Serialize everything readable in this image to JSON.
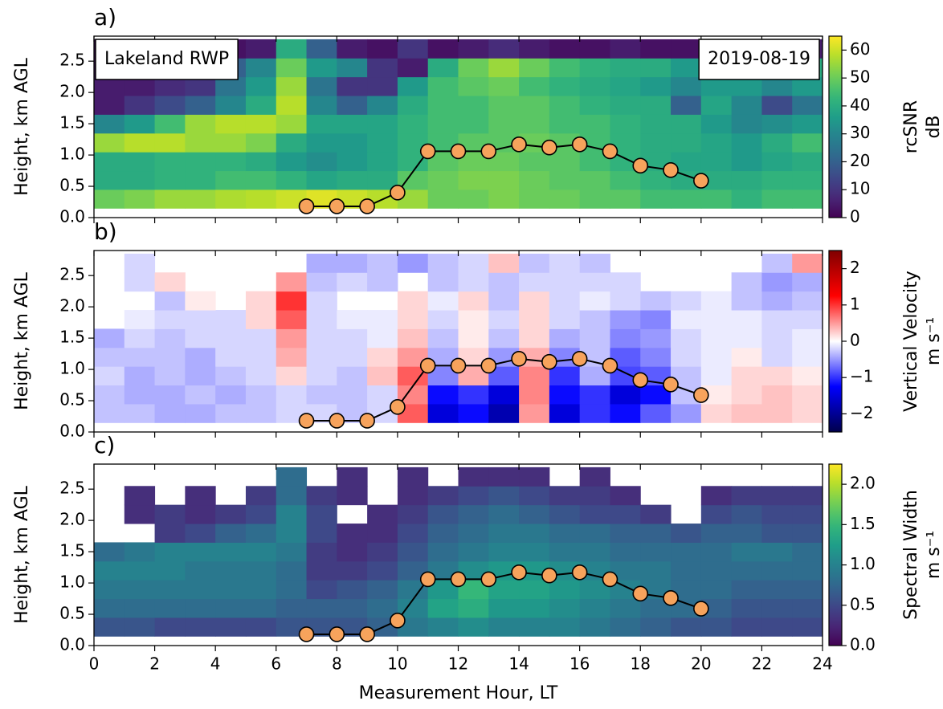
{
  "chart_data": [
    {
      "type": "heatmap",
      "panel_label": "a)",
      "ylabel": "Height, km AGL",
      "colorbar_label": [
        "rcSNR",
        "dB"
      ],
      "colormap": "viridis",
      "zlim": [
        0,
        65
      ],
      "zticks": [
        0,
        10,
        20,
        30,
        40,
        50,
        60
      ],
      "annotations": [
        "Lakeland RWP",
        "2019-08-19"
      ],
      "xlim": [
        0,
        24
      ],
      "ylim": [
        0,
        2.9
      ],
      "yticks": [
        {
          "value": 0,
          "label": "0.0"
        },
        {
          "value": 0.5,
          "label": "0.5"
        },
        {
          "value": 1,
          "label": "1.0"
        },
        {
          "value": 1.5,
          "label": "1.5"
        },
        {
          "value": 2,
          "label": "2.0"
        },
        {
          "value": 2.5,
          "label": "2.5"
        }
      ],
      "xbins": [
        0,
        1,
        2,
        3,
        4,
        5,
        6,
        7,
        8,
        9,
        10,
        11,
        12,
        13,
        14,
        15,
        16,
        17,
        18,
        19,
        20,
        21,
        22,
        23,
        24
      ],
      "ybins": [
        0.15,
        0.45,
        0.75,
        1.05,
        1.35,
        1.65,
        1.95,
        2.25,
        2.55,
        2.85
      ],
      "z": [
        [
          50,
          52,
          55,
          55,
          57,
          58,
          60,
          62,
          60,
          58,
          55,
          50,
          50,
          52,
          50,
          50,
          48,
          48,
          45,
          45,
          45,
          42,
          45,
          45
        ],
        [
          40,
          40,
          42,
          42,
          45,
          45,
          42,
          38,
          40,
          40,
          48,
          50,
          52,
          52,
          50,
          48,
          48,
          45,
          42,
          40,
          40,
          40,
          42,
          42
        ],
        [
          40,
          40,
          42,
          42,
          42,
          40,
          35,
          32,
          35,
          38,
          42,
          48,
          50,
          50,
          48,
          48,
          45,
          42,
          40,
          38,
          38,
          35,
          38,
          40
        ],
        [
          55,
          58,
          58,
          55,
          55,
          52,
          40,
          35,
          35,
          38,
          42,
          45,
          48,
          48,
          50,
          48,
          45,
          42,
          40,
          40,
          38,
          35,
          40,
          45
        ],
        [
          30,
          35,
          45,
          55,
          58,
          58,
          55,
          38,
          38,
          38,
          42,
          45,
          45,
          48,
          48,
          45,
          45,
          42,
          40,
          40,
          35,
          30,
          32,
          35
        ],
        [
          5,
          10,
          15,
          20,
          30,
          40,
          58,
          30,
          20,
          30,
          40,
          45,
          45,
          48,
          48,
          45,
          42,
          40,
          40,
          20,
          38,
          30,
          15,
          25
        ],
        [
          5,
          5,
          8,
          10,
          25,
          35,
          55,
          25,
          10,
          10,
          35,
          45,
          48,
          50,
          45,
          42,
          40,
          38,
          35,
          30,
          35,
          35,
          30,
          35
        ],
        [
          3,
          3,
          5,
          10,
          20,
          30,
          50,
          35,
          30,
          10,
          5,
          40,
          50,
          55,
          50,
          45,
          42,
          40,
          40,
          35,
          35,
          30,
          35,
          40
        ],
        [
          2,
          2,
          2,
          3,
          3,
          5,
          40,
          20,
          5,
          3,
          10,
          3,
          5,
          8,
          5,
          3,
          3,
          5,
          3,
          3,
          5,
          2,
          2,
          5
        ]
      ],
      "line": {
        "x": [
          7,
          8,
          9,
          10,
          11,
          12,
          13,
          14,
          15,
          16,
          17,
          18,
          19,
          20
        ],
        "values": [
          0.18,
          0.18,
          0.18,
          0.4,
          1.06,
          1.06,
          1.06,
          1.17,
          1.12,
          1.17,
          1.06,
          0.83,
          0.76,
          0.59
        ],
        "color": "#000000",
        "marker_color": "#f7a35c"
      }
    },
    {
      "type": "heatmap",
      "panel_label": "b)",
      "ylabel": "Height, km AGL",
      "colorbar_label": [
        "Vertical Velocity",
        "m s⁻¹"
      ],
      "colormap": "seismic",
      "zlim": [
        -2.5,
        2.5
      ],
      "zticks": [
        {
          "value": -2,
          "label": "−2"
        },
        {
          "value": -1,
          "label": "−1"
        },
        0,
        1,
        2
      ],
      "xlim": [
        0,
        24
      ],
      "ylim": [
        0,
        2.9
      ],
      "yticks": [
        {
          "value": 0,
          "label": "0.0"
        },
        {
          "value": 0.5,
          "label": "0.5"
        },
        {
          "value": 1,
          "label": "1.0"
        },
        {
          "value": 1.5,
          "label": "1.5"
        },
        {
          "value": 2,
          "label": "2.0"
        },
        {
          "value": 2.5,
          "label": "2.5"
        }
      ],
      "xbins": [
        0,
        1,
        2,
        3,
        4,
        5,
        6,
        7,
        8,
        9,
        10,
        11,
        12,
        13,
        14,
        15,
        16,
        17,
        18,
        19,
        20,
        21,
        22,
        23,
        24
      ],
      "ybins": [
        0.15,
        0.45,
        0.75,
        1.05,
        1.35,
        1.65,
        1.95,
        2.25,
        2.55,
        2.85
      ],
      "z": [
        [
          -0.3,
          -0.3,
          -0.4,
          -0.4,
          -0.3,
          -0.3,
          -0.2,
          -0.2,
          -0.3,
          -0.2,
          0.8,
          -1.5,
          -1.2,
          -1.8,
          0.5,
          -1.5,
          -1.0,
          -1.2,
          -0.8,
          -0.5,
          0.2,
          0.3,
          0.3,
          0.2
        ],
        [
          -0.3,
          -0.4,
          -0.4,
          -0.3,
          -0.4,
          -0.3,
          -0.2,
          -0.3,
          -0.3,
          -0.2,
          0.6,
          -1.2,
          -1.0,
          -1.5,
          0.6,
          -1.2,
          -1.0,
          -1.5,
          -1.2,
          -0.3,
          0.1,
          0.2,
          0.3,
          0.2
        ],
        [
          -0.2,
          -0.4,
          -0.3,
          -0.4,
          -0.3,
          -0.2,
          0.2,
          -0.2,
          -0.3,
          0.3,
          0.8,
          -0.6,
          0.4,
          -0.8,
          0.6,
          -1.0,
          -0.4,
          -0.9,
          -0.8,
          -0.3,
          -0.1,
          0.2,
          0.2,
          0.1
        ],
        [
          -0.3,
          -0.3,
          -0.3,
          -0.4,
          -0.2,
          -0.2,
          0.4,
          -0.2,
          -0.2,
          0.2,
          0.5,
          -0.4,
          0.2,
          -0.5,
          0.4,
          -0.6,
          -0.3,
          -0.8,
          -0.6,
          -0.2,
          -0.1,
          0.1,
          -0.2,
          -0.1
        ],
        [
          -0.4,
          -0.2,
          -0.3,
          -0.2,
          -0.2,
          -0.2,
          0.5,
          -0.2,
          -0.2,
          -0.1,
          0.3,
          -0.3,
          0.1,
          -0.3,
          0.2,
          -0.4,
          -0.3,
          -0.6,
          -0.5,
          -0.2,
          -0.1,
          -0.1,
          -0.2,
          -0.1
        ],
        [
          null,
          -0.1,
          -0.2,
          -0.2,
          -0.2,
          0.2,
          0.8,
          -0.2,
          -0.1,
          -0.1,
          0.2,
          -0.2,
          0.1,
          -0.2,
          0.2,
          -0.2,
          -0.3,
          -0.5,
          -0.6,
          -0.1,
          -0.1,
          -0.1,
          -0.2,
          -0.2
        ],
        [
          null,
          null,
          -0.3,
          0.1,
          null,
          0.2,
          1.0,
          -0.2,
          null,
          null,
          0.2,
          -0.1,
          0.2,
          -0.3,
          0.2,
          -0.2,
          -0.1,
          -0.2,
          -0.3,
          -0.2,
          -0.1,
          -0.3,
          -0.4,
          -0.3
        ],
        [
          null,
          -0.2,
          0.2,
          null,
          null,
          null,
          0.5,
          -0.3,
          -0.2,
          -0.3,
          null,
          -0.3,
          -0.2,
          -0.3,
          -0.2,
          -0.2,
          -0.2,
          -0.2,
          null,
          null,
          null,
          -0.3,
          -0.5,
          -0.4
        ],
        [
          null,
          -0.2,
          null,
          null,
          null,
          null,
          null,
          -0.4,
          -0.4,
          -0.3,
          -0.5,
          -0.3,
          -0.2,
          0.3,
          -0.3,
          -0.2,
          -0.3,
          null,
          null,
          null,
          null,
          null,
          -0.3,
          0.5
        ]
      ],
      "line": {
        "x": [
          7,
          8,
          9,
          10,
          11,
          12,
          13,
          14,
          15,
          16,
          17,
          18,
          19,
          20
        ],
        "values": [
          0.18,
          0.18,
          0.18,
          0.4,
          1.06,
          1.06,
          1.06,
          1.17,
          1.12,
          1.17,
          1.06,
          0.83,
          0.76,
          0.59
        ],
        "color": "#000000",
        "marker_color": "#f7a35c"
      }
    },
    {
      "type": "heatmap",
      "panel_label": "c)",
      "ylabel": "Height, km AGL",
      "colorbar_label": [
        "Spectral Width",
        "m s⁻¹"
      ],
      "colormap": "viridis",
      "zlim": [
        0,
        2.25
      ],
      "zticks": [
        {
          "value": 0,
          "label": "0.0"
        },
        {
          "value": 0.5,
          "label": "0.5"
        },
        {
          "value": 1,
          "label": "1.0"
        },
        {
          "value": 1.5,
          "label": "1.5"
        },
        {
          "value": 2,
          "label": "2.0"
        }
      ],
      "xlabel": "Measurement Hour, LT",
      "xlim": [
        0,
        24
      ],
      "xticks": [
        0,
        2,
        4,
        6,
        8,
        10,
        12,
        14,
        16,
        18,
        20,
        22,
        24
      ],
      "ylim": [
        0,
        2.9
      ],
      "yticks": [
        {
          "value": 0,
          "label": "0.0"
        },
        {
          "value": 0.5,
          "label": "0.5"
        },
        {
          "value": 1,
          "label": "1.0"
        },
        {
          "value": 1.5,
          "label": "1.5"
        },
        {
          "value": 2,
          "label": "2.0"
        },
        {
          "value": 2.5,
          "label": "2.5"
        }
      ],
      "xbins": [
        0,
        1,
        2,
        3,
        4,
        5,
        6,
        7,
        8,
        9,
        10,
        11,
        12,
        13,
        14,
        15,
        16,
        17,
        18,
        19,
        20,
        21,
        22,
        23,
        24
      ],
      "ybins": [
        0.15,
        0.45,
        0.75,
        1.05,
        1.35,
        1.65,
        1.95,
        2.25,
        2.55,
        2.85
      ],
      "z": [
        [
          0.6,
          0.6,
          0.5,
          0.5,
          0.5,
          0.5,
          0.6,
          0.6,
          0.6,
          0.7,
          0.9,
          1.0,
          1.1,
          1.0,
          1.0,
          1.0,
          0.9,
          0.8,
          0.7,
          0.6,
          0.6,
          0.5,
          0.5,
          0.5
        ],
        [
          0.8,
          0.8,
          0.8,
          0.8,
          0.8,
          0.8,
          0.7,
          0.7,
          0.7,
          0.8,
          1.0,
          1.3,
          1.4,
          1.2,
          1.2,
          1.1,
          1.0,
          0.9,
          0.8,
          0.8,
          0.7,
          0.6,
          0.6,
          0.6
        ],
        [
          0.9,
          0.9,
          0.9,
          0.9,
          0.9,
          0.9,
          0.8,
          0.5,
          0.6,
          0.7,
          0.9,
          1.2,
          1.5,
          1.3,
          1.3,
          1.2,
          1.1,
          1.0,
          0.9,
          0.8,
          0.8,
          0.7,
          0.7,
          0.7
        ],
        [
          1.0,
          1.0,
          1.0,
          0.9,
          0.9,
          0.9,
          0.8,
          0.4,
          0.4,
          0.5,
          0.7,
          0.9,
          1.1,
          1.2,
          1.2,
          1.1,
          1.0,
          0.9,
          0.9,
          0.8,
          0.8,
          0.8,
          0.8,
          0.8
        ],
        [
          0.8,
          0.9,
          1.0,
          1.0,
          1.0,
          1.0,
          0.9,
          0.4,
          0.3,
          0.4,
          0.6,
          0.8,
          0.9,
          1.0,
          1.0,
          0.9,
          0.9,
          0.8,
          0.8,
          0.8,
          0.8,
          0.9,
          0.9,
          0.8
        ],
        [
          null,
          null,
          0.4,
          0.5,
          0.7,
          0.8,
          1.0,
          0.5,
          0.3,
          0.3,
          0.5,
          0.7,
          0.8,
          0.9,
          0.9,
          0.8,
          0.8,
          0.7,
          0.7,
          0.6,
          0.7,
          0.7,
          0.6,
          0.6
        ],
        [
          null,
          0.3,
          0.4,
          0.3,
          0.4,
          0.5,
          1.0,
          0.5,
          null,
          0.3,
          0.4,
          0.6,
          0.7,
          0.8,
          0.7,
          0.6,
          0.5,
          0.5,
          0.4,
          null,
          0.5,
          0.6,
          0.5,
          0.5
        ],
        [
          null,
          0.3,
          null,
          0.3,
          null,
          0.4,
          0.8,
          0.4,
          0.3,
          null,
          0.3,
          0.4,
          0.5,
          0.6,
          0.5,
          0.4,
          0.4,
          0.3,
          null,
          null,
          0.3,
          0.4,
          0.4,
          0.4
        ],
        [
          null,
          null,
          null,
          null,
          null,
          null,
          0.8,
          null,
          0.3,
          null,
          0.3,
          null,
          0.3,
          0.3,
          0.3,
          null,
          0.3,
          null,
          null,
          null,
          null,
          null,
          null,
          null
        ]
      ],
      "line": {
        "x": [
          7,
          8,
          9,
          10,
          11,
          12,
          13,
          14,
          15,
          16,
          17,
          18,
          19,
          20
        ],
        "values": [
          0.18,
          0.18,
          0.18,
          0.4,
          1.06,
          1.06,
          1.06,
          1.17,
          1.12,
          1.17,
          1.06,
          0.83,
          0.76,
          0.59
        ],
        "color": "#000000",
        "marker_color": "#f7a35c"
      }
    }
  ]
}
